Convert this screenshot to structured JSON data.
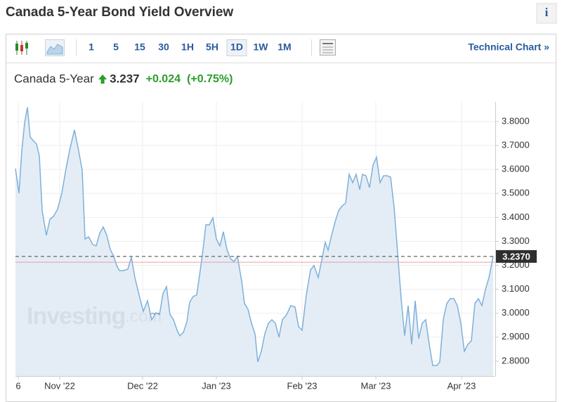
{
  "header": {
    "title": "Canada 5-Year Bond Yield Overview",
    "info_button": "i"
  },
  "toolbar": {
    "timeframes": [
      "1",
      "5",
      "15",
      "30",
      "1H",
      "5H",
      "1D",
      "1W",
      "1M"
    ],
    "active": "1D",
    "link": "Technical Chart »"
  },
  "quote": {
    "name": "Canada 5-Year",
    "price": "3.237",
    "change": "+0.024",
    "change_percent": "(+0.75%)"
  },
  "watermark": {
    "brand": "Investing",
    "suffix": ".com"
  },
  "chart_data": {
    "type": "area",
    "color": "#7eb0da",
    "area_color": "#dfeaf5",
    "grid": true,
    "x": [
      0,
      1.25,
      2.25,
      3.25,
      4.25,
      5.25,
      6.25,
      7.5,
      8.5,
      9.5,
      11,
      12.25,
      13.5,
      15,
      16.5,
      18,
      19.5,
      21,
      22.5,
      23.75,
      24.75,
      26,
      27.5,
      28.75,
      30,
      31.25,
      32.5,
      33.75,
      35,
      36,
      37,
      38.5,
      40,
      41.25,
      42.5,
      44,
      45.5,
      47,
      48.5,
      50,
      51.25,
      52.5,
      53.75,
      55,
      56.25,
      57.5,
      58.5,
      59.75,
      61,
      62,
      63.25,
      64.5,
      65.75,
      66.75,
      67.75,
      69,
      70.25,
      71.5,
      72.75,
      74,
      75.25,
      76.5,
      77.75,
      79,
      80.5,
      81.5,
      82.75,
      84,
      85.25,
      86.25,
      87.5,
      88.75,
      90,
      91.25,
      92.5,
      93.75,
      95,
      96.5,
      98,
      99.5,
      100.75,
      102,
      103.5,
      105,
      106.25,
      107.75,
      109,
      110.25,
      111.25,
      112.5,
      113.75,
      115,
      116.25,
      117.5,
      118.75,
      120,
      121.25,
      122.5,
      123.5,
      124.75,
      126,
      127.25,
      128.5,
      129.75,
      131,
      132.25,
      133.5,
      134.75,
      136,
      137.25,
      138.5,
      139.75,
      141,
      142.25,
      143.5,
      144.75,
      146,
      147.25,
      148.5,
      150,
      151,
      152.25,
      153.5,
      154.75,
      156,
      157.25,
      158.5,
      159.75,
      161,
      162.25,
      163.5,
      164.75,
      166,
      167.25,
      168.5,
      170
    ],
    "values": [
      3.604,
      3.501,
      3.677,
      3.794,
      3.859,
      3.736,
      3.721,
      3.706,
      3.656,
      3.428,
      3.325,
      3.392,
      3.404,
      3.434,
      3.501,
      3.604,
      3.692,
      3.765,
      3.677,
      3.598,
      3.31,
      3.319,
      3.287,
      3.281,
      3.334,
      3.36,
      3.325,
      3.266,
      3.237,
      3.199,
      3.178,
      3.178,
      3.184,
      3.234,
      3.149,
      3.076,
      3.008,
      3.052,
      2.973,
      3.002,
      2.994,
      3.082,
      3.111,
      2.994,
      2.973,
      2.929,
      2.906,
      2.92,
      2.964,
      3.046,
      3.07,
      3.076,
      3.178,
      3.266,
      3.369,
      3.369,
      3.398,
      3.31,
      3.281,
      3.34,
      3.266,
      3.228,
      3.216,
      3.237,
      3.134,
      3.041,
      3.017,
      2.958,
      2.914,
      2.797,
      2.841,
      2.914,
      2.958,
      2.973,
      2.958,
      2.9,
      2.973,
      2.994,
      3.032,
      3.026,
      2.944,
      2.929,
      3.076,
      3.181,
      3.199,
      3.149,
      3.222,
      3.296,
      3.263,
      3.325,
      3.381,
      3.428,
      3.448,
      3.46,
      3.58,
      3.545,
      3.58,
      3.516,
      3.58,
      3.574,
      3.524,
      3.618,
      3.651,
      3.545,
      3.574,
      3.574,
      3.568,
      3.442,
      3.252,
      3.061,
      2.906,
      3.032,
      2.87,
      3.052,
      2.894,
      2.958,
      2.973,
      2.87,
      2.782,
      2.782,
      2.797,
      2.973,
      3.041,
      3.061,
      3.061,
      3.032,
      2.958,
      2.841,
      2.87,
      2.885,
      3.041,
      3.061,
      3.032,
      3.099,
      3.149,
      3.237
    ],
    "xlim": [
      0,
      170.75
    ],
    "xticks": [
      {
        "value": 1,
        "label": "6"
      },
      {
        "value": 15.75,
        "label": "Nov '22"
      },
      {
        "value": 45.25,
        "label": "Dec '22"
      },
      {
        "value": 71.5,
        "label": "Jan '23"
      },
      {
        "value": 102,
        "label": "Feb '23"
      },
      {
        "value": 128.25,
        "label": "Mar '23"
      },
      {
        "value": 158.75,
        "label": "Apr '23"
      }
    ],
    "ylim": [
      2.738,
      3.882
    ],
    "yticks": [
      {
        "value": 2.8,
        "label": "2.8000"
      },
      {
        "value": 2.9,
        "label": "2.9000"
      },
      {
        "value": 3.0,
        "label": "3.0000"
      },
      {
        "value": 3.1,
        "label": "3.1000"
      },
      {
        "value": 3.2,
        "label": "3.2000"
      },
      {
        "value": 3.3,
        "label": "3.3000"
      },
      {
        "value": 3.4,
        "label": "3.4000"
      },
      {
        "value": 3.5,
        "label": "3.5000"
      },
      {
        "value": 3.6,
        "label": "3.6000"
      },
      {
        "value": 3.7,
        "label": "3.7000"
      },
      {
        "value": 3.8,
        "label": "3.8000"
      }
    ],
    "hlines": [
      {
        "value": 3.213,
        "color": "#e8a0a0"
      }
    ],
    "last_label": {
      "value": 3.237,
      "label": "3.2370"
    }
  }
}
